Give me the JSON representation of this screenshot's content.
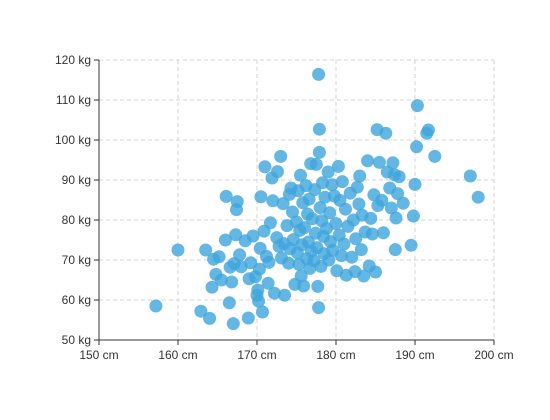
{
  "chart_data": {
    "type": "scatter",
    "title": "",
    "xlabel": "",
    "ylabel": "",
    "x_unit": "cm",
    "y_unit": "kg",
    "xlim": [
      150,
      200
    ],
    "ylim": [
      50,
      120
    ],
    "x_ticks": [
      150,
      160,
      170,
      180,
      190,
      200
    ],
    "y_ticks": [
      50,
      60,
      70,
      80,
      90,
      100,
      110,
      120
    ],
    "grid": true,
    "legend": "none",
    "colors": {
      "point": "#3ea5dc",
      "axis": "#333333",
      "grid": "#d6d6d6"
    },
    "series": [
      {
        "points": [
          [
            157.2,
            58.5
          ],
          [
            160.0,
            72.5
          ],
          [
            162.9,
            57.2
          ],
          [
            163.5,
            72.5
          ],
          [
            164.0,
            55.4
          ],
          [
            164.3,
            63.2
          ],
          [
            164.5,
            70.2
          ],
          [
            164.8,
            66.4
          ],
          [
            165.2,
            70.8
          ],
          [
            165.5,
            65.0
          ],
          [
            166.0,
            75.0
          ],
          [
            166.1,
            85.9
          ],
          [
            166.5,
            59.3
          ],
          [
            166.6,
            68.2
          ],
          [
            166.8,
            64.5
          ],
          [
            167.0,
            54.1
          ],
          [
            167.1,
            69.1
          ],
          [
            167.3,
            76.3
          ],
          [
            167.4,
            82.6
          ],
          [
            167.5,
            84.6
          ],
          [
            167.8,
            71.3
          ],
          [
            168.0,
            68.3
          ],
          [
            168.5,
            74.8
          ],
          [
            168.9,
            55.5
          ],
          [
            169.0,
            65.3
          ],
          [
            169.2,
            69.3
          ],
          [
            169.5,
            76.0
          ],
          [
            169.8,
            65.8
          ],
          [
            170.0,
            61.2
          ],
          [
            170.1,
            62.5
          ],
          [
            170.2,
            59.7
          ],
          [
            170.3,
            67.7
          ],
          [
            170.4,
            72.9
          ],
          [
            170.5,
            85.8
          ],
          [
            170.7,
            57.0
          ],
          [
            170.9,
            77.2
          ],
          [
            171.0,
            93.3
          ],
          [
            171.2,
            70.9
          ],
          [
            171.4,
            64.2
          ],
          [
            171.5,
            69.4
          ],
          [
            171.7,
            79.3
          ],
          [
            171.9,
            90.5
          ],
          [
            172.0,
            84.8
          ],
          [
            172.2,
            61.7
          ],
          [
            172.5,
            75.6
          ],
          [
            172.6,
            92.1
          ],
          [
            172.8,
            73.4
          ],
          [
            173.0,
            95.9
          ],
          [
            173.1,
            70.5
          ],
          [
            173.3,
            84.1
          ],
          [
            173.4,
            74.1
          ],
          [
            173.5,
            61.2
          ],
          [
            173.8,
            78.6
          ],
          [
            174.0,
            69.2
          ],
          [
            174.1,
            86.4
          ],
          [
            174.2,
            72.8
          ],
          [
            174.3,
            88.0
          ],
          [
            174.5,
            82.0
          ],
          [
            174.6,
            75.1
          ],
          [
            174.8,
            63.9
          ],
          [
            175.0,
            79.5
          ],
          [
            175.1,
            71.8
          ],
          [
            175.2,
            87.3
          ],
          [
            175.3,
            68.9
          ],
          [
            175.4,
            77.4
          ],
          [
            175.5,
            91.2
          ],
          [
            175.6,
            66.0
          ],
          [
            175.7,
            73.8
          ],
          [
            175.8,
            84.3
          ],
          [
            175.9,
            63.5
          ],
          [
            176.0,
            78.1
          ],
          [
            176.2,
            88.6
          ],
          [
            176.3,
            70.3
          ],
          [
            176.4,
            81.5
          ],
          [
            176.5,
            74.5
          ],
          [
            176.6,
            85.2
          ],
          [
            176.7,
            67.9
          ],
          [
            176.8,
            94.1
          ],
          [
            176.9,
            72.2
          ],
          [
            177.0,
            80.3
          ],
          [
            177.2,
            69.8
          ],
          [
            177.3,
            87.6
          ],
          [
            177.4,
            76.7
          ],
          [
            177.5,
            93.9
          ],
          [
            177.6,
            73.1
          ],
          [
            177.7,
            63.4
          ],
          [
            177.8,
            58.1
          ],
          [
            177.8,
            116.4
          ],
          [
            177.9,
            102.7
          ],
          [
            177.9,
            96.9
          ],
          [
            178.0,
            83.1
          ],
          [
            178.1,
            68.4
          ],
          [
            178.2,
            79.8
          ],
          [
            178.3,
            89.3
          ],
          [
            178.4,
            75.9
          ],
          [
            178.5,
            71.6
          ],
          [
            178.6,
            85.7
          ],
          [
            178.8,
            77.9
          ],
          [
            179.0,
            92.0
          ],
          [
            179.1,
            70.0
          ],
          [
            179.2,
            81.8
          ],
          [
            179.3,
            74.6
          ],
          [
            179.5,
            88.8
          ],
          [
            179.6,
            72.4
          ],
          [
            179.8,
            86.0
          ],
          [
            180.0,
            79.1
          ],
          [
            180.1,
            67.3
          ],
          [
            180.3,
            93.4
          ],
          [
            180.4,
            76.2
          ],
          [
            180.5,
            84.9
          ],
          [
            180.7,
            71.1
          ],
          [
            180.8,
            89.6
          ],
          [
            181.0,
            74.0
          ],
          [
            181.2,
            82.7
          ],
          [
            181.3,
            66.2
          ],
          [
            181.5,
            78.4
          ],
          [
            181.8,
            86.7
          ],
          [
            182.0,
            70.7
          ],
          [
            182.2,
            80.0
          ],
          [
            182.4,
            67.1
          ],
          [
            182.5,
            75.3
          ],
          [
            182.7,
            88.2
          ],
          [
            182.9,
            84.0
          ],
          [
            183.0,
            91.0
          ],
          [
            183.2,
            72.6
          ],
          [
            183.3,
            81.2
          ],
          [
            183.5,
            66.0
          ],
          [
            183.7,
            77.0
          ],
          [
            184.0,
            94.8
          ],
          [
            184.2,
            68.5
          ],
          [
            184.4,
            80.4
          ],
          [
            184.6,
            76.5
          ],
          [
            184.8,
            86.3
          ],
          [
            185.0,
            67.0
          ],
          [
            185.2,
            102.6
          ],
          [
            185.3,
            83.6
          ],
          [
            185.5,
            94.4
          ],
          [
            185.8,
            84.9
          ],
          [
            186.0,
            76.8
          ],
          [
            186.3,
            101.7
          ],
          [
            186.5,
            92.0
          ],
          [
            186.8,
            88.0
          ],
          [
            187.0,
            83.0
          ],
          [
            187.2,
            94.3
          ],
          [
            187.4,
            91.3
          ],
          [
            187.5,
            72.6
          ],
          [
            187.6,
            80.5
          ],
          [
            187.8,
            86.6
          ],
          [
            188.0,
            90.8
          ],
          [
            188.5,
            84.2
          ],
          [
            189.5,
            73.7
          ],
          [
            189.8,
            81.0
          ],
          [
            190.0,
            88.9
          ],
          [
            190.2,
            98.3
          ],
          [
            190.3,
            108.6
          ],
          [
            191.5,
            101.7
          ],
          [
            191.7,
            102.5
          ],
          [
            192.5,
            95.9
          ],
          [
            197.0,
            91.0
          ],
          [
            198.0,
            85.7
          ]
        ]
      }
    ]
  }
}
